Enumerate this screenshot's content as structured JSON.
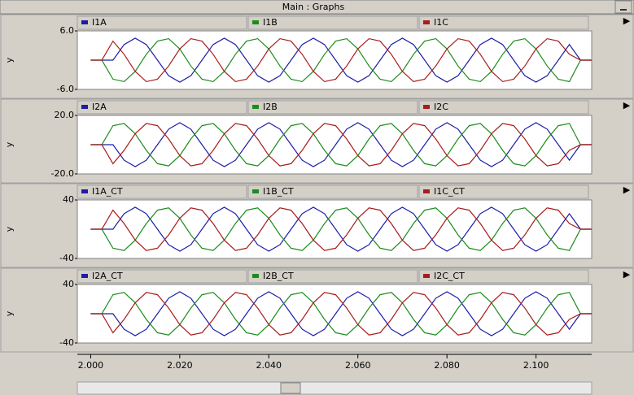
{
  "window_title": "Main : Graphs",
  "chart_data": [
    {
      "type": "line",
      "y_label": "y",
      "x": [
        2,
        2.0025,
        2.005,
        2.0075,
        2.01,
        2.0125,
        2.015,
        2.0175,
        2.02,
        2.0225,
        2.025,
        2.0275,
        2.03,
        2.0325,
        2.035,
        2.0375,
        2.04,
        2.0425,
        2.045,
        2.0475,
        2.05,
        2.0525,
        2.055,
        2.0575,
        2.06,
        2.0625,
        2.065,
        2.0675,
        2.07,
        2.0725,
        2.075,
        2.0775,
        2.08,
        2.0825,
        2.085,
        2.0875,
        2.09,
        2.0925,
        2.095,
        2.0975,
        2.1,
        2.1025,
        2.105,
        2.1075,
        2.11,
        2.1125
      ],
      "xlim": [
        1.997,
        2.1125
      ],
      "ylim": [
        -6,
        6
      ],
      "yticks": [
        {
          "value": 6,
          "label": "6.0"
        },
        {
          "value": -6,
          "label": "-6.0"
        }
      ],
      "series": [
        {
          "name": "I1A",
          "color": "#1c1ca8",
          "values": [
            0,
            0,
            0,
            3.2,
            4.5,
            3.2,
            0,
            -3.2,
            -4.5,
            -3.2,
            0,
            3.2,
            4.5,
            3.2,
            0,
            -3.2,
            -4.5,
            -3.2,
            0,
            3.2,
            4.5,
            3.2,
            0,
            -3.2,
            -4.5,
            -3.2,
            0,
            3.2,
            4.5,
            3.2,
            0,
            -3.2,
            -4.5,
            -3.2,
            0,
            3.2,
            4.5,
            3.2,
            0,
            -3.2,
            -4.5,
            -3.2,
            0,
            3.2,
            0,
            0
          ]
        },
        {
          "name": "I1B",
          "color": "#1c8c1c",
          "values": [
            0,
            0,
            -3.9,
            -4.4,
            -2.3,
            1.2,
            3.9,
            4.4,
            2.3,
            -1.2,
            -3.9,
            -4.4,
            -2.3,
            1.2,
            3.9,
            4.4,
            2.3,
            -1.2,
            -3.9,
            -4.4,
            -2.3,
            1.2,
            3.9,
            4.4,
            2.3,
            -1.2,
            -3.9,
            -4.4,
            -2.3,
            1.2,
            3.9,
            4.4,
            2.3,
            -1.2,
            -3.9,
            -4.4,
            -2.3,
            1.2,
            3.9,
            4.4,
            2.3,
            -1.2,
            -3.9,
            -4.4,
            0,
            0
          ]
        },
        {
          "name": "I1C",
          "color": "#a81c1c",
          "values": [
            0,
            0,
            3.9,
            1.2,
            -2.3,
            -4.4,
            -3.9,
            -1.2,
            2.3,
            4.4,
            3.9,
            1.2,
            -2.3,
            -4.4,
            -3.9,
            -1.2,
            2.3,
            4.4,
            3.9,
            1.2,
            -2.3,
            -4.4,
            -3.9,
            -1.2,
            2.3,
            4.4,
            3.9,
            1.2,
            -2.3,
            -4.4,
            -3.9,
            -1.2,
            2.3,
            4.4,
            3.9,
            1.2,
            -2.3,
            -4.4,
            -3.9,
            -1.2,
            2.3,
            4.4,
            3.9,
            1.2,
            0,
            0
          ]
        }
      ]
    },
    {
      "type": "line",
      "y_label": "y",
      "x": [
        2,
        2.0025,
        2.005,
        2.0075,
        2.01,
        2.0125,
        2.015,
        2.0175,
        2.02,
        2.0225,
        2.025,
        2.0275,
        2.03,
        2.0325,
        2.035,
        2.0375,
        2.04,
        2.0425,
        2.045,
        2.0475,
        2.05,
        2.0525,
        2.055,
        2.0575,
        2.06,
        2.0625,
        2.065,
        2.0675,
        2.07,
        2.0725,
        2.075,
        2.0775,
        2.08,
        2.0825,
        2.085,
        2.0875,
        2.09,
        2.0925,
        2.095,
        2.0975,
        2.1,
        2.1025,
        2.105,
        2.1075,
        2.11,
        2.1125
      ],
      "xlim": [
        1.997,
        2.1125
      ],
      "ylim": [
        -20,
        20
      ],
      "yticks": [
        {
          "value": 20,
          "label": "20.0"
        },
        {
          "value": -20,
          "label": "-20.0"
        }
      ],
      "series": [
        {
          "name": "I2A",
          "color": "#1c1ca8",
          "values": [
            0,
            0,
            0,
            -10.6,
            -15,
            -10.6,
            0,
            10.6,
            15,
            10.6,
            0,
            -10.6,
            -15,
            -10.6,
            0,
            10.6,
            15,
            10.6,
            0,
            -10.6,
            -15,
            -10.6,
            0,
            10.6,
            15,
            10.6,
            0,
            -10.6,
            -15,
            -10.6,
            0,
            10.6,
            15,
            10.6,
            0,
            -10.6,
            -15,
            -10.6,
            0,
            10.6,
            15,
            10.6,
            0,
            -10.6,
            0,
            0
          ]
        },
        {
          "name": "I2B",
          "color": "#1c8c1c",
          "values": [
            0,
            0,
            13,
            14.5,
            7.5,
            -3.9,
            -13,
            -14.5,
            -7.5,
            3.9,
            13,
            14.5,
            7.5,
            -3.9,
            -13,
            -14.5,
            -7.5,
            3.9,
            13,
            14.5,
            7.5,
            -3.9,
            -13,
            -14.5,
            -7.5,
            3.9,
            13,
            14.5,
            7.5,
            -3.9,
            -13,
            -14.5,
            -7.5,
            3.9,
            13,
            14.5,
            7.5,
            -3.9,
            -13,
            -14.5,
            -7.5,
            3.9,
            13,
            14.5,
            0,
            0
          ]
        },
        {
          "name": "I2C",
          "color": "#a81c1c",
          "values": [
            0,
            0,
            -13,
            -3.9,
            7.5,
            14.5,
            13,
            3.9,
            -7.5,
            -14.5,
            -13,
            -3.9,
            7.5,
            14.5,
            13,
            3.9,
            -7.5,
            -14.5,
            -13,
            -3.9,
            7.5,
            14.5,
            13,
            3.9,
            -7.5,
            -14.5,
            -13,
            -3.9,
            7.5,
            14.5,
            13,
            3.9,
            -7.5,
            -14.5,
            -13,
            -3.9,
            7.5,
            14.5,
            13,
            3.9,
            -7.5,
            -14.5,
            -13,
            -3.9,
            0,
            0
          ]
        }
      ]
    },
    {
      "type": "line",
      "y_label": "y",
      "x": [
        2,
        2.0025,
        2.005,
        2.0075,
        2.01,
        2.0125,
        2.015,
        2.0175,
        2.02,
        2.0225,
        2.025,
        2.0275,
        2.03,
        2.0325,
        2.035,
        2.0375,
        2.04,
        2.0425,
        2.045,
        2.0475,
        2.05,
        2.0525,
        2.055,
        2.0575,
        2.06,
        2.0625,
        2.065,
        2.0675,
        2.07,
        2.0725,
        2.075,
        2.0775,
        2.08,
        2.0825,
        2.085,
        2.0875,
        2.09,
        2.0925,
        2.095,
        2.0975,
        2.1,
        2.1025,
        2.105,
        2.1075,
        2.11,
        2.1125
      ],
      "xlim": [
        1.997,
        2.1125
      ],
      "ylim": [
        -40,
        40
      ],
      "yticks": [
        40,
        -40
      ],
      "series": [
        {
          "name": "I1A_CT",
          "color": "#1c1ca8",
          "values": [
            0,
            0,
            0,
            21.2,
            30,
            21.2,
            0,
            -21.2,
            -30,
            -21.2,
            0,
            21.2,
            30,
            21.2,
            0,
            -21.2,
            -30,
            -21.2,
            0,
            21.2,
            30,
            21.2,
            0,
            -21.2,
            -30,
            -21.2,
            0,
            21.2,
            30,
            21.2,
            0,
            -21.2,
            -30,
            -21.2,
            0,
            21.2,
            30,
            21.2,
            0,
            -21.2,
            -30,
            -21.2,
            0,
            21.2,
            0,
            0
          ]
        },
        {
          "name": "I1B_CT",
          "color": "#1c8c1c",
          "values": [
            0,
            0,
            -26,
            -29.1,
            -15,
            7.8,
            26,
            29.1,
            15,
            -7.8,
            -26,
            -29.1,
            -15,
            7.8,
            26,
            29.1,
            15,
            -7.8,
            -26,
            -29.1,
            -15,
            7.8,
            26,
            29.1,
            15,
            -7.8,
            -26,
            -29.1,
            -15,
            7.8,
            26,
            29.1,
            15,
            -7.8,
            -26,
            -29.1,
            -15,
            7.8,
            26,
            29.1,
            15,
            -7.8,
            -26,
            -29.1,
            0,
            0
          ]
        },
        {
          "name": "I1C_CT",
          "color": "#a81c1c",
          "values": [
            0,
            0,
            26,
            7.8,
            -15,
            -29.1,
            -26,
            -7.8,
            15,
            29.1,
            26,
            7.8,
            -15,
            -29.1,
            -26,
            -7.8,
            15,
            29.1,
            26,
            7.8,
            -15,
            -29.1,
            -26,
            -7.8,
            15,
            29.1,
            26,
            7.8,
            -15,
            -29.1,
            -26,
            -7.8,
            15,
            29.1,
            26,
            7.8,
            -15,
            -29.1,
            -26,
            -7.8,
            15,
            29.1,
            26,
            7.8,
            0,
            0
          ]
        }
      ]
    },
    {
      "type": "line",
      "y_label": "y",
      "x": [
        2,
        2.0025,
        2.005,
        2.0075,
        2.01,
        2.0125,
        2.015,
        2.0175,
        2.02,
        2.0225,
        2.025,
        2.0275,
        2.03,
        2.0325,
        2.035,
        2.0375,
        2.04,
        2.0425,
        2.045,
        2.0475,
        2.05,
        2.0525,
        2.055,
        2.0575,
        2.06,
        2.0625,
        2.065,
        2.0675,
        2.07,
        2.0725,
        2.075,
        2.0775,
        2.08,
        2.0825,
        2.085,
        2.0875,
        2.09,
        2.0925,
        2.095,
        2.0975,
        2.1,
        2.1025,
        2.105,
        2.1075,
        2.11,
        2.1125
      ],
      "xlim": [
        1.997,
        2.1125
      ],
      "xticks": [
        {
          "value": 2,
          "label": "2.000"
        },
        {
          "value": 2.02,
          "label": "2.020"
        },
        {
          "value": 2.04,
          "label": "2.040"
        },
        {
          "value": 2.06,
          "label": "2.060"
        },
        {
          "value": 2.08,
          "label": "2.080"
        },
        {
          "value": 2.1,
          "label": "2.100"
        }
      ],
      "ylim": [
        -40,
        40
      ],
      "yticks": [
        40,
        -40
      ],
      "series": [
        {
          "name": "I2A_CT",
          "color": "#1c1ca8",
          "values": [
            0,
            0,
            0,
            -21.2,
            -30,
            -21.2,
            0,
            21.2,
            30,
            21.2,
            0,
            -21.2,
            -30,
            -21.2,
            0,
            21.2,
            30,
            21.2,
            0,
            -21.2,
            -30,
            -21.2,
            0,
            21.2,
            30,
            21.2,
            0,
            -21.2,
            -30,
            -21.2,
            0,
            21.2,
            30,
            21.2,
            0,
            -21.2,
            -30,
            -21.2,
            0,
            21.2,
            30,
            21.2,
            0,
            -21.2,
            0,
            0
          ]
        },
        {
          "name": "I2B_CT",
          "color": "#1c8c1c",
          "values": [
            0,
            0,
            26,
            29.1,
            15,
            -7.8,
            -26,
            -29.1,
            -15,
            7.8,
            26,
            29.1,
            15,
            -7.8,
            -26,
            -29.1,
            -15,
            7.8,
            26,
            29.1,
            15,
            -7.8,
            -26,
            -29.1,
            -15,
            7.8,
            26,
            29.1,
            15,
            -7.8,
            -26,
            -29.1,
            -15,
            7.8,
            26,
            29.1,
            15,
            -7.8,
            -26,
            -29.1,
            -15,
            7.8,
            26,
            29.1,
            0,
            0
          ]
        },
        {
          "name": "I2C_CT",
          "color": "#a81c1c",
          "values": [
            0,
            0,
            -26,
            -7.8,
            15,
            29.1,
            26,
            7.8,
            -15,
            -29.1,
            -26,
            -7.8,
            15,
            29.1,
            26,
            7.8,
            -15,
            -29.1,
            -26,
            -7.8,
            15,
            29.1,
            26,
            7.8,
            -15,
            -29.1,
            -26,
            -7.8,
            15,
            29.1,
            26,
            7.8,
            -15,
            -29.1,
            -26,
            -7.8,
            15,
            29.1,
            26,
            7.8,
            -15,
            -29.1,
            -26,
            -7.8,
            0,
            0
          ]
        }
      ]
    }
  ]
}
